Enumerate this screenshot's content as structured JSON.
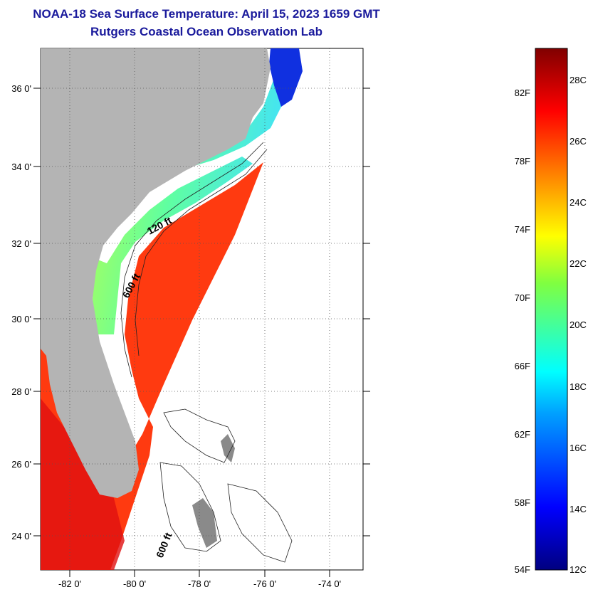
{
  "title_line1": "NOAA-18 Sea Surface Temperature:  April 15, 2023 1659 GMT",
  "title_line2": "Rutgers Coastal Ocean Observation Lab",
  "map": {
    "lat_labels": [
      "36 0'",
      "34 0'",
      "32 0'",
      "30 0'",
      "28 0'",
      "26 0'",
      "24 0'"
    ],
    "lon_labels": [
      "-82 0'",
      "-80 0'",
      "-78 0'",
      "-76 0'",
      "-74 0'"
    ],
    "contour_labels": [
      "120 ft",
      "600 ft",
      "600 ft"
    ],
    "colors": {
      "land": "#b4b4b4",
      "grid": "#555555"
    }
  },
  "colorbar": {
    "fahrenheit_labels": [
      "82F",
      "78F",
      "74F",
      "70F",
      "66F",
      "62F",
      "58F",
      "54F"
    ],
    "celsius_labels": [
      "28C",
      "26C",
      "24C",
      "22C",
      "20C",
      "18C",
      "16C",
      "14C",
      "12C"
    ],
    "range_celsius": [
      12,
      29
    ]
  }
}
